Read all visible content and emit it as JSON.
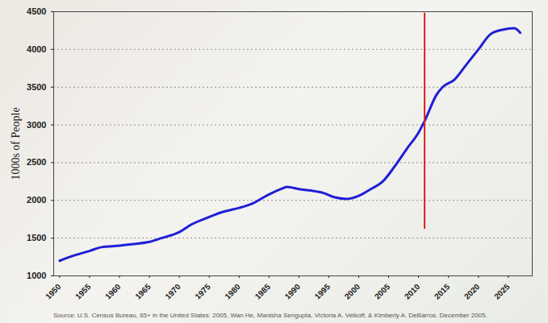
{
  "chart_data": {
    "type": "line",
    "y_label": "1000s of People",
    "note": "Source: U.S. Census Bureau, 65+ in the United States: 2005, Wan He, Manisha Sengupta, Victoria A. Velkoff, & Kimberly A. DeBarros. December 2005.",
    "x": [
      1950,
      1952,
      1955,
      1957,
      1960,
      1962,
      1965,
      1967,
      1970,
      1972,
      1975,
      1977,
      1980,
      1982,
      1985,
      1987,
      1988,
      1990,
      1992,
      1994,
      1996,
      1998,
      2000,
      2002,
      2004,
      2006,
      2008,
      2010,
      2011,
      2013,
      2014,
      2016,
      2018,
      2020,
      2022,
      2024,
      2026,
      2027
    ],
    "values": [
      1200,
      1260,
      1330,
      1380,
      1400,
      1420,
      1450,
      1500,
      1580,
      1680,
      1780,
      1840,
      1900,
      1950,
      2080,
      2150,
      2180,
      2150,
      2130,
      2100,
      2040,
      2020,
      2060,
      2150,
      2250,
      2450,
      2680,
      2900,
      3050,
      3400,
      3500,
      3600,
      3800,
      4000,
      4200,
      4260,
      4280,
      4220
    ],
    "color": "#1f1fd6",
    "xlim": [
      1949,
      2029
    ],
    "xticks": [
      1950,
      1955,
      1960,
      1965,
      1970,
      1975,
      1980,
      1985,
      1990,
      1995,
      2000,
      2005,
      2010,
      2015,
      2020,
      2025
    ],
    "ylim": [
      1000,
      4500
    ],
    "yticks": [
      1000,
      1500,
      2000,
      2500,
      3000,
      3500,
      4000,
      4500
    ],
    "grid": true,
    "vline": {
      "x": 2011,
      "y": [
        1620,
        4480
      ],
      "color": "#e02020"
    }
  }
}
